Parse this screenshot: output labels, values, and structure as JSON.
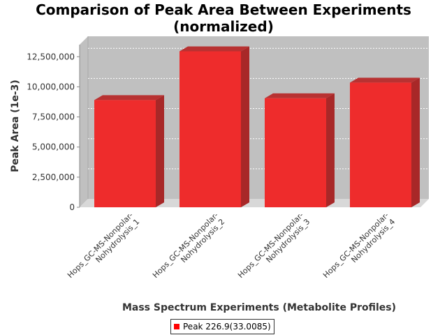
{
  "title": "Comparison of Peak Area Between Experiments (normalized)",
  "title_lines": [
    "Comparison of Peak Area Between Experiments",
    "(normalized)"
  ],
  "colors": {
    "bar": "#ee2c2c",
    "plot_bg": "#c0c0c0",
    "legend_swatch": "#ff0000"
  },
  "chart_data": {
    "type": "bar",
    "title": "Comparison of Peak Area Between Experiments (normalized)",
    "xlabel": "Mass Spectrum Experiments (Metabolite Profiles)",
    "ylabel": "Peak Area (1e-3)",
    "categories": [
      [
        "Hops_GC-MS-Nonpolar-",
        "Nohydrolysis_1"
      ],
      [
        "Hops_GC-MS-Nonpolar-",
        "Nohydrolysis_2"
      ],
      [
        "Hops_GC-MS-Nonpolar-",
        "Nohydrolysis_3"
      ],
      [
        "Hops_GC-MS-Nonpolar-",
        "Nohydrolysis_4"
      ]
    ],
    "series": [
      {
        "name": "Peak 226.9(33.0085)",
        "values": [
          8900000,
          12950000,
          9050000,
          10350000
        ]
      }
    ],
    "ylim": [
      0,
      13500000
    ],
    "yticks": [
      0,
      2500000,
      5000000,
      7500000,
      10000000,
      12500000
    ],
    "ytick_labels": [
      "0",
      "2,500,000",
      "5,000,000",
      "7,500,000",
      "10,000,000",
      "12,500,000"
    ],
    "grid": true,
    "legend_position": "bottom"
  }
}
